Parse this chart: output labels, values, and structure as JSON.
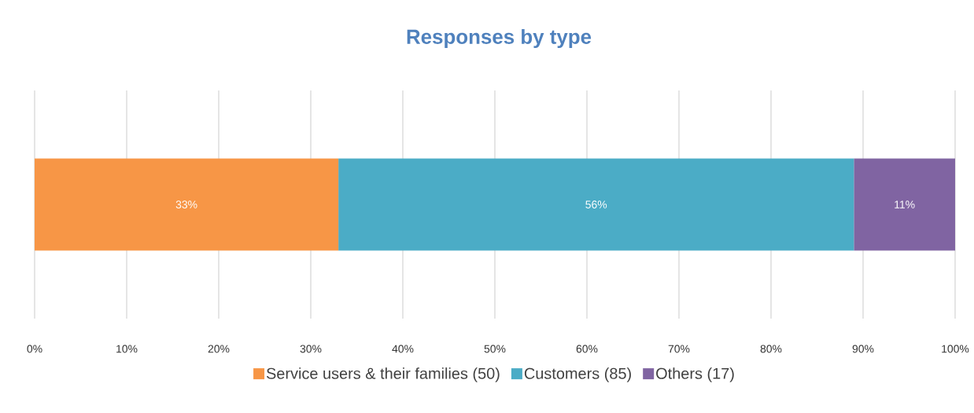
{
  "chart_data": {
    "type": "bar",
    "orientation": "horizontal",
    "stacked": true,
    "title": "Responses by type",
    "categories": [
      null
    ],
    "series": [
      {
        "name": "Service users & their families (50)",
        "color": "#f79646",
        "values": [
          33
        ],
        "value_labels": [
          "33%"
        ]
      },
      {
        "name": "Customers (85)",
        "color": "#4bacc6",
        "values": [
          56
        ],
        "value_labels": [
          "56%"
        ]
      },
      {
        "name": "Others (17)",
        "color": "#8064a2",
        "values": [
          11
        ],
        "value_labels": [
          "11%"
        ]
      }
    ],
    "xlim": [
      0,
      100
    ],
    "xticks": [
      {
        "value": 0,
        "label": "0%"
      },
      {
        "value": 10,
        "label": "10%"
      },
      {
        "value": 20,
        "label": "20%"
      },
      {
        "value": 30,
        "label": "30%"
      },
      {
        "value": 40,
        "label": "40%"
      },
      {
        "value": 50,
        "label": "50%"
      },
      {
        "value": 60,
        "label": "60%"
      },
      {
        "value": 70,
        "label": "70%"
      },
      {
        "value": 80,
        "label": "80%"
      },
      {
        "value": 90,
        "label": "90%"
      },
      {
        "value": 100,
        "label": "100%"
      }
    ],
    "grid": "x",
    "legend": "bottom"
  }
}
